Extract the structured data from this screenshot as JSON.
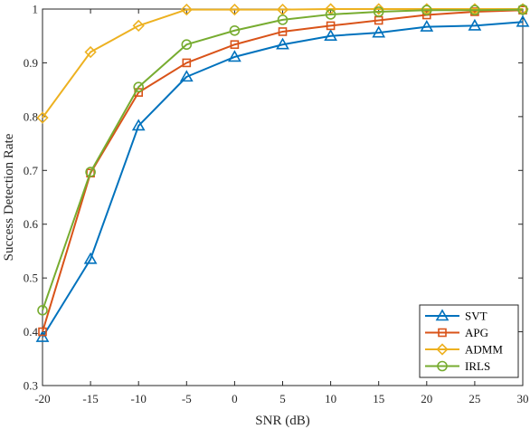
{
  "chart_data": {
    "type": "line",
    "xlabel": "SNR (dB)",
    "ylabel": "Success Detection Rate",
    "x": [
      -20,
      -15,
      -10,
      -5,
      0,
      5,
      10,
      15,
      20,
      25,
      30
    ],
    "xlim": [
      -20,
      30
    ],
    "ylim": [
      0.3,
      1
    ],
    "xticks": [
      -20,
      -15,
      -10,
      -5,
      0,
      5,
      10,
      15,
      20,
      25,
      30
    ],
    "yticks": [
      0.3,
      0.4,
      0.5,
      0.6,
      0.7,
      0.8,
      0.9,
      1
    ],
    "grid": false,
    "legend_position": "bottom-right",
    "series": [
      {
        "name": "SVT",
        "marker": "triangle",
        "color": "#0072BD",
        "values": [
          0.39,
          0.535,
          0.783,
          0.874,
          0.911,
          0.934,
          0.95,
          0.956,
          0.967,
          0.969,
          0.976
        ]
      },
      {
        "name": "APG",
        "marker": "square",
        "color": "#D95319",
        "values": [
          0.4,
          0.695,
          0.845,
          0.9,
          0.934,
          0.958,
          0.969,
          0.979,
          0.989,
          0.995,
          0.998
        ]
      },
      {
        "name": "ADMM",
        "marker": "diamond",
        "color": "#EDB120",
        "values": [
          0.798,
          0.92,
          0.969,
          0.999,
          0.999,
          0.999,
          1.0,
          1.0,
          1.0,
          1.0,
          1.0
        ]
      },
      {
        "name": "IRLS",
        "marker": "circle",
        "color": "#77AC30",
        "values": [
          0.44,
          0.697,
          0.855,
          0.934,
          0.96,
          0.98,
          0.99,
          0.995,
          0.998,
          0.998,
          0.999
        ]
      }
    ]
  }
}
